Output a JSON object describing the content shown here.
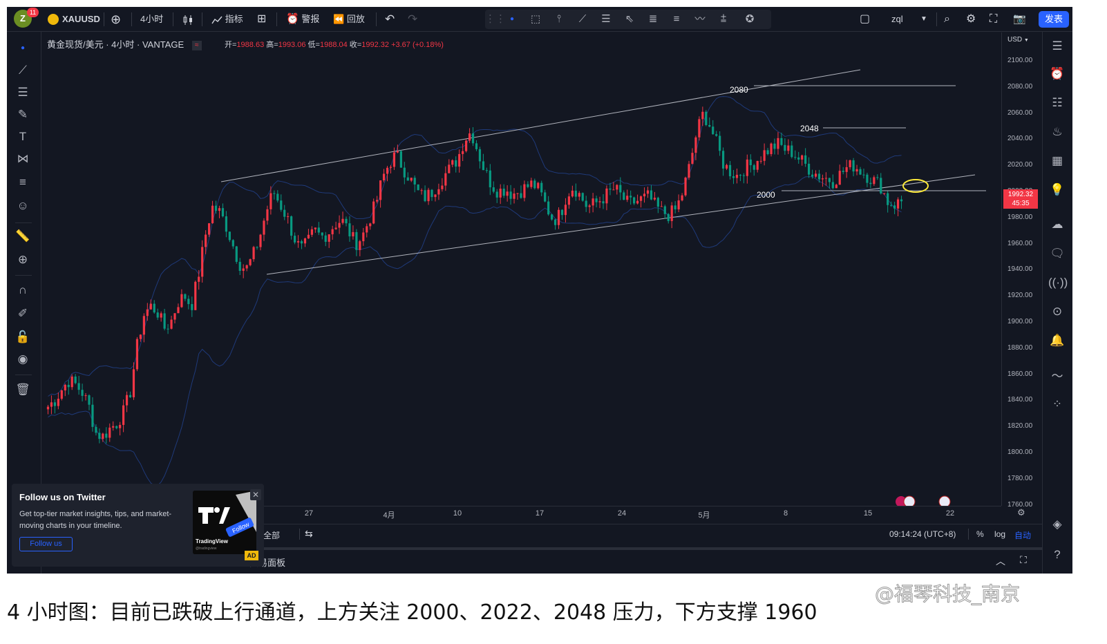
{
  "topbar": {
    "avatar_letter": "Z",
    "notification_count": "11",
    "symbol": "XAUUSD",
    "interval": "4小时",
    "indicators_label": "指标",
    "alert_label": "警报",
    "replay_label": "回放",
    "layout_name": "zql",
    "publish_label": "发表"
  },
  "legend": {
    "title": "黄金现货/美元 · 4小时 · VANTAGE",
    "open_label": "开=",
    "open": "1988.63",
    "high_label": "高=",
    "high": "1993.06",
    "low_label": "低=",
    "low": "1988.04",
    "close_label": "收=",
    "close": "1992.32",
    "change": "+3.67 (+0.18%)"
  },
  "yaxis": {
    "currency": "USD",
    "ticks": [
      "2100.00",
      "2080.00",
      "2060.00",
      "2040.00",
      "2020.00",
      "2000.00",
      "1980.00",
      "1960.00",
      "1940.00",
      "1920.00",
      "1900.00",
      "1880.00",
      "1860.00",
      "1840.00",
      "1820.00",
      "1800.00",
      "1780.00",
      "1760.00"
    ],
    "last_price": "1992.32",
    "countdown": "45:35"
  },
  "xaxis": {
    "ticks": [
      "27",
      "4月",
      "10",
      "17",
      "24",
      "5月",
      "8",
      "15",
      "22"
    ]
  },
  "annotations": {
    "label_2080": "2080",
    "label_2048": "2048",
    "label_2000": "2000"
  },
  "bottombar": {
    "range_all": "全部",
    "time": "09:14:24 (UTC+8)",
    "percent": "%",
    "log": "log",
    "auto": "自动"
  },
  "panelbar": {
    "trading_panel": "交易面板"
  },
  "popup": {
    "title": "Follow us on Twitter",
    "body": "Get top-tier market insights, tips, and market-moving charts in your timeline.",
    "button": "Follow us",
    "brand": "TradingView",
    "handle": "@tradingview",
    "follow_badge": "Follow",
    "ad": "AD"
  },
  "caption": "4 小时图：目前已跌破上行通道，上方关注 2000、2022、2048 压力，下方支撑 1960",
  "watermark": "@福琴科技_南京",
  "colors": {
    "background": "#131722",
    "up": "#f23645",
    "down": "#089981",
    "accent": "#2962ff",
    "band": "#1f3a7a",
    "highlight": "#ffeb3b"
  },
  "chart_data": {
    "type": "candlestick",
    "timeframe": "4H",
    "ylim": [
      1750,
      2110
    ],
    "key_levels": [
      2080,
      2048,
      2000
    ],
    "price_path": [
      1835,
      1840,
      1848,
      1855,
      1852,
      1846,
      1835,
      1815,
      1812,
      1818,
      1822,
      1830,
      1845,
      1880,
      1905,
      1912,
      1908,
      1895,
      1900,
      1915,
      1920,
      1912,
      1935,
      1965,
      1988,
      1985,
      1975,
      1960,
      1945,
      1940,
      1950,
      1965,
      1985,
      2000,
      1990,
      1980,
      1965,
      1955,
      1960,
      1970,
      1965,
      1968,
      1975,
      1978,
      1970,
      1960,
      1965,
      1978,
      1990,
      2010,
      2022,
      2028,
      2018,
      2010,
      2000,
      1995,
      1998,
      2005,
      2012,
      2018,
      2025,
      2040,
      2046,
      2030,
      2015,
      2005,
      2000,
      2002,
      1998,
      2000,
      2003,
      2006,
      2000,
      1988,
      1978,
      1982,
      1998,
      2004,
      1996,
      1988,
      1990,
      1994,
      1998,
      2002,
      1996,
      1990,
      1992,
      1994,
      1996,
      1988,
      1984,
      1982,
      1986,
      2000,
      2020,
      2045,
      2060,
      2050,
      2035,
      2020,
      2015,
      2012,
      2018,
      2020,
      2025,
      2030,
      2034,
      2036,
      2032,
      2030,
      2025,
      2020,
      2015,
      2012,
      2010,
      2008,
      2013,
      2018,
      2020,
      2016,
      2012,
      2008,
      2004,
      1992,
      1990,
      1992
    ]
  }
}
